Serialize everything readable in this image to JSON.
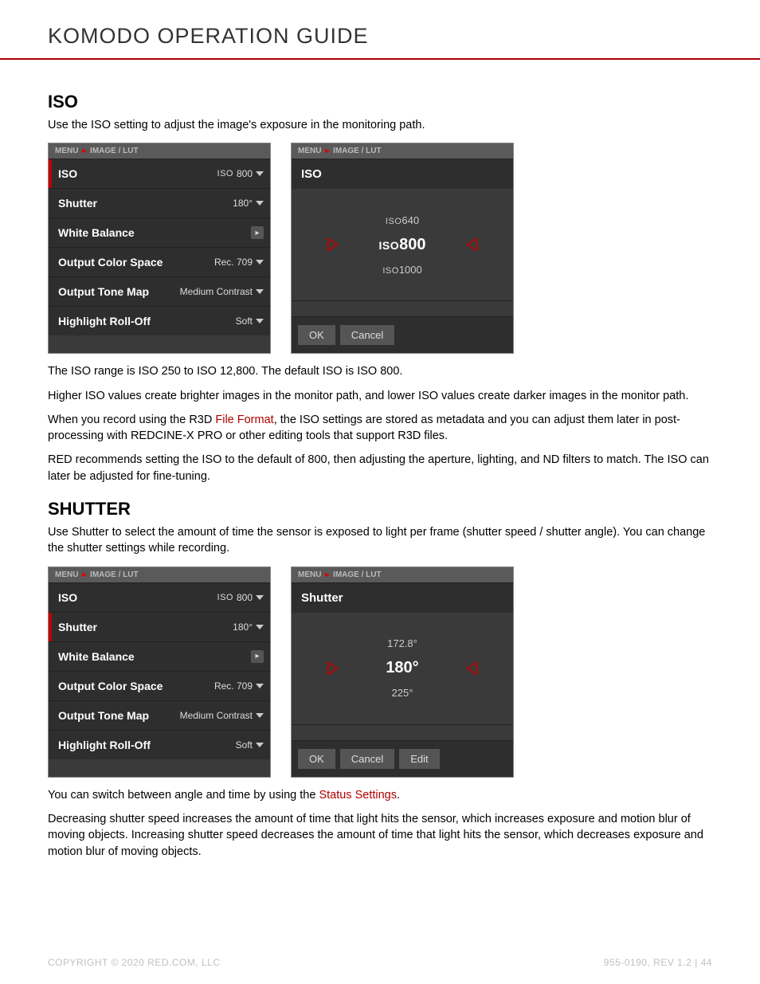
{
  "page": {
    "title": "KOMODO OPERATION GUIDE",
    "copyright": "COPYRIGHT © 2020 RED.COM, LLC",
    "docref": "955-0190, REV 1.2  |  44"
  },
  "colors": {
    "accent": "#b00000",
    "panel_bg": "#3a3a3a",
    "panel_row": "#2e2e2e",
    "breadcrumb_bg": "#5a5a5a"
  },
  "breadcrumb": {
    "root": "MENU",
    "path": "IMAGE / LUT"
  },
  "iso_section": {
    "heading": "ISO",
    "intro": "Use the ISO setting to adjust the image's exposure in the monitoring path.",
    "range_text": "The ISO range is ISO 250 to ISO 12,800. The default ISO is ISO 800.",
    "higher_text": "Higher ISO values create brighter images in the monitor path, and lower ISO values create darker images in the monitor path.",
    "r3d_pre": "When you record using the R3D ",
    "r3d_link": "File Format",
    "r3d_post": ", the ISO settings are stored as metadata and you can adjust them later in post-processing with REDCINE-X PRO or other editing tools that support R3D files.",
    "recommend": "RED recommends setting the ISO to the default of 800, then adjusting the aperture, lighting, and ND filters to match. The ISO can later be adjusted for fine-tuning."
  },
  "shutter_section": {
    "heading": "SHUTTER",
    "intro": "Use Shutter to select the amount of time the sensor is exposed to light per frame (shutter speed / shutter angle). You can change the shutter settings while recording.",
    "switch_pre": "You can switch between angle and time by using the ",
    "switch_link": "Status Settings",
    "switch_post": ".",
    "decrease_text": "Decreasing shutter speed increases the amount of time that light hits the sensor, which increases exposure and motion blur of moving objects. Increasing shutter speed decreases the amount of time that light hits the sensor, which decreases exposure and motion blur of moving objects."
  },
  "menu_iso": {
    "rows": [
      {
        "label": "ISO",
        "value": "ISO800",
        "type": "dropdown",
        "active": true
      },
      {
        "label": "Shutter",
        "value": "180°",
        "type": "dropdown"
      },
      {
        "label": "White Balance",
        "value": "",
        "type": "chevron"
      },
      {
        "label": "Output Color Space",
        "value": "Rec. 709",
        "type": "dropdown"
      },
      {
        "label": "Output Tone Map",
        "value": "Medium Contrast",
        "type": "dropdown"
      },
      {
        "label": "Highlight Roll-Off",
        "value": "Soft",
        "type": "dropdown"
      }
    ]
  },
  "menu_shutter": {
    "rows": [
      {
        "label": "ISO",
        "value": "ISO800",
        "type": "dropdown"
      },
      {
        "label": "Shutter",
        "value": "180°",
        "type": "dropdown",
        "active": true
      },
      {
        "label": "White Balance",
        "value": "",
        "type": "chevron"
      },
      {
        "label": "Output Color Space",
        "value": "Rec. 709",
        "type": "dropdown"
      },
      {
        "label": "Output Tone Map",
        "value": "Medium Contrast",
        "type": "dropdown"
      },
      {
        "label": "Highlight Roll-Off",
        "value": "Soft",
        "type": "dropdown"
      }
    ]
  },
  "picker_iso": {
    "title": "ISO",
    "prev": "640",
    "selected": "800",
    "next": "1000",
    "prefix": "ISO",
    "buttons": [
      "OK",
      "Cancel"
    ]
  },
  "picker_shutter": {
    "title": "Shutter",
    "prev": "172.8°",
    "selected": "180°",
    "next": "225°",
    "buttons": [
      "OK",
      "Cancel",
      "Edit"
    ]
  }
}
